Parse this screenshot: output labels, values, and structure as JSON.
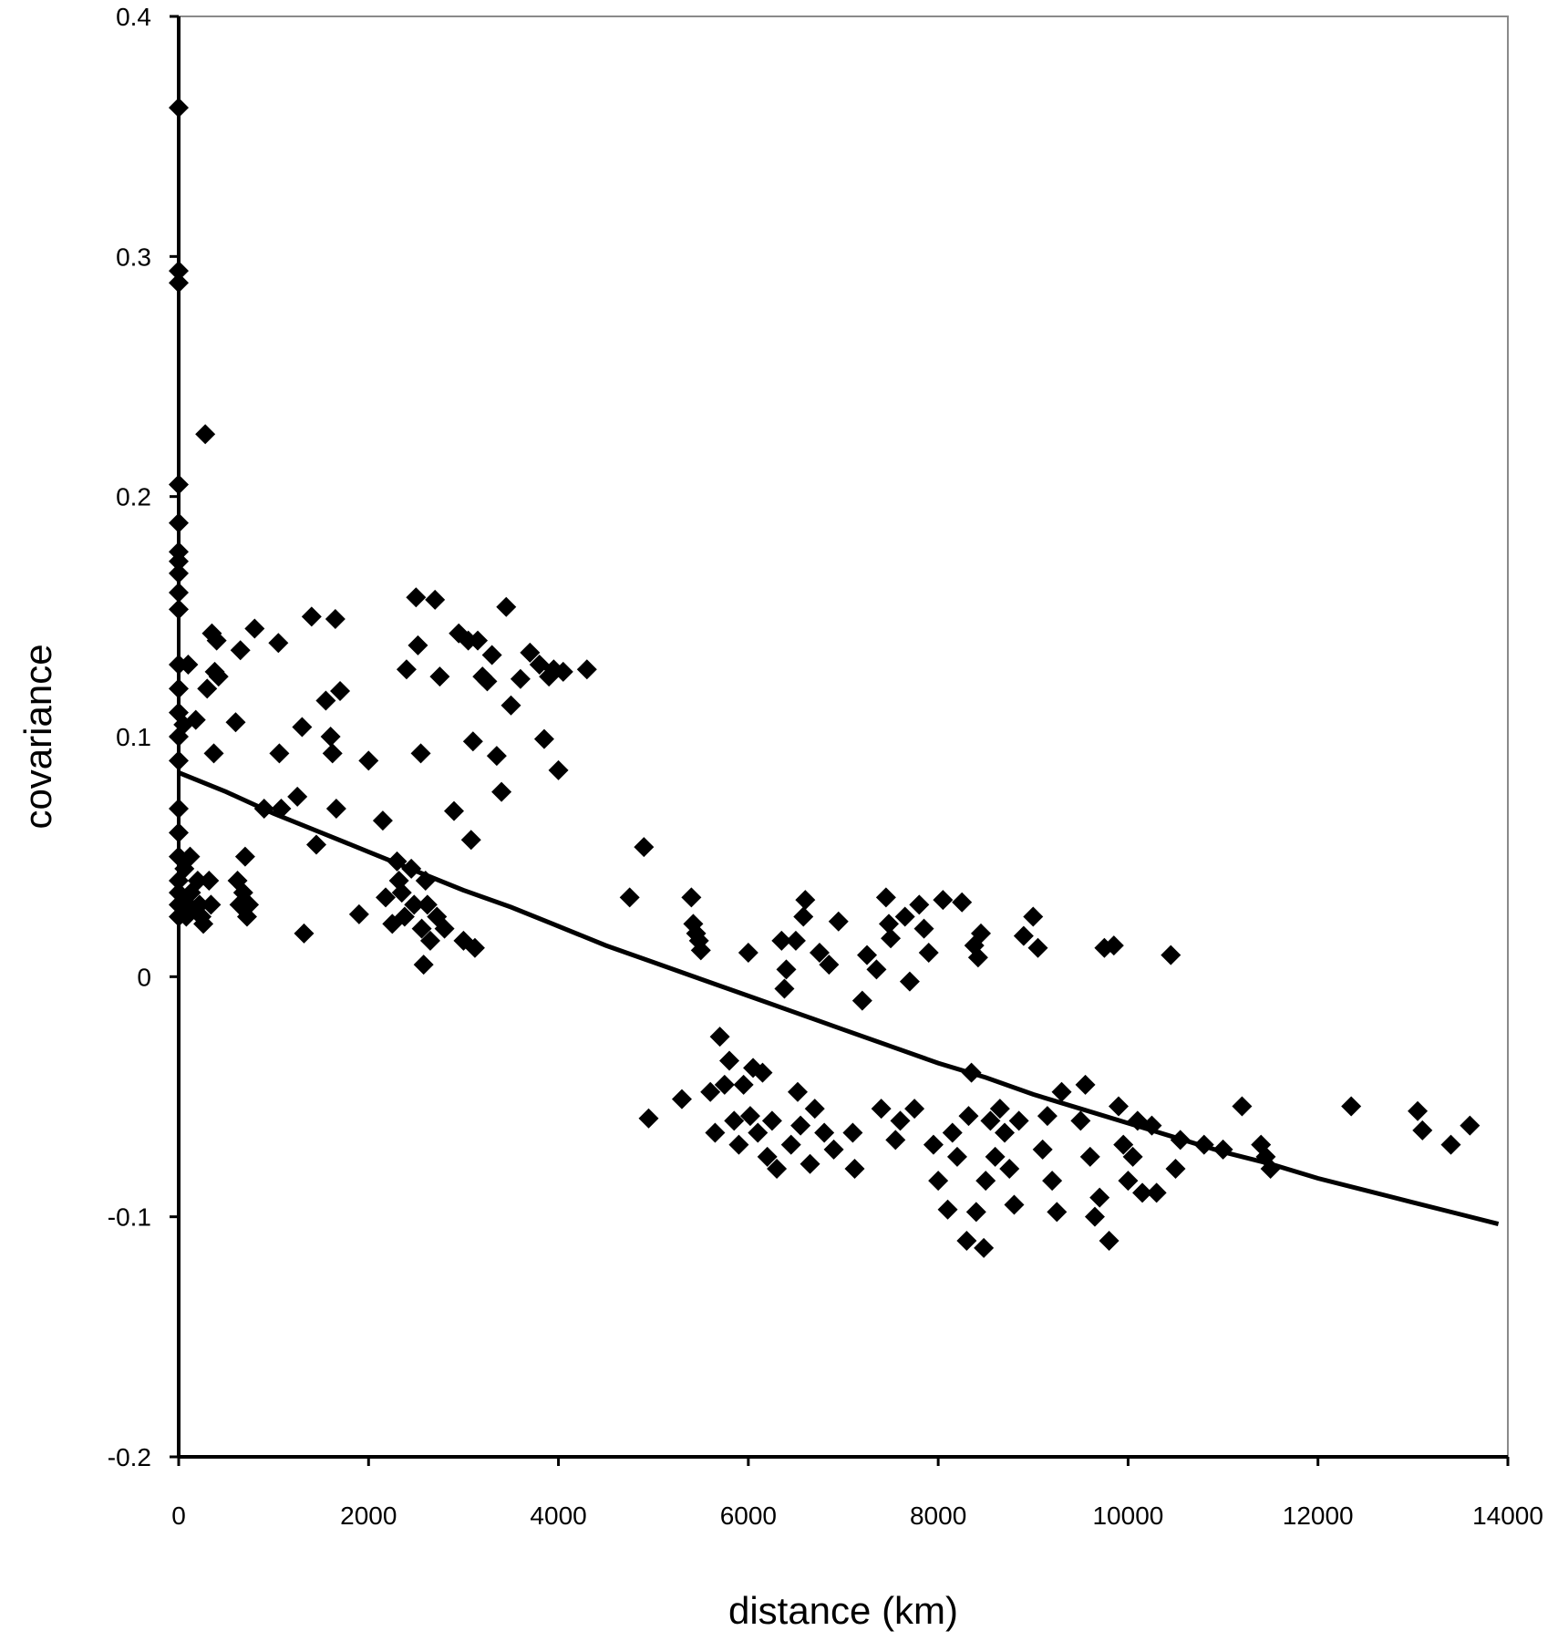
{
  "chart_data": {
    "type": "scatter",
    "xlabel": "distance (km)",
    "ylabel": "covariance",
    "xlim": [
      0,
      14000
    ],
    "ylim": [
      -0.2,
      0.4
    ],
    "x_ticks": [
      0,
      2000,
      4000,
      6000,
      8000,
      10000,
      12000,
      14000
    ],
    "y_ticks": [
      -0.2,
      -0.1,
      0,
      0.1,
      0.2,
      0.3,
      0.4
    ],
    "y_tick_labels": [
      "-0.2",
      "-0.1",
      "0",
      "0.1",
      "0.2",
      "0.3",
      "0.4"
    ],
    "x_tick_labels": [
      "0",
      "2000",
      "4000",
      "6000",
      "8000",
      "10000",
      "12000",
      "14000"
    ],
    "grid": false,
    "marker": "diamond",
    "marker_color": "#000000",
    "points": [
      [
        0,
        0.362
      ],
      [
        0,
        0.294
      ],
      [
        0,
        0.289
      ],
      [
        0,
        0.205
      ],
      [
        0,
        0.189
      ],
      [
        0,
        0.177
      ],
      [
        0,
        0.173
      ],
      [
        0,
        0.168
      ],
      [
        0,
        0.16
      ],
      [
        0,
        0.153
      ],
      [
        0,
        0.13
      ],
      [
        0,
        0.12
      ],
      [
        0,
        0.11
      ],
      [
        0,
        0.1
      ],
      [
        0,
        0.09
      ],
      [
        0,
        0.07
      ],
      [
        0,
        0.06
      ],
      [
        0,
        0.05
      ],
      [
        0,
        0.04
      ],
      [
        0,
        0.035
      ],
      [
        0,
        0.03
      ],
      [
        0,
        0.025
      ],
      [
        50,
        0.105
      ],
      [
        60,
        0.045
      ],
      [
        70,
        0.03
      ],
      [
        80,
        0.025
      ],
      [
        100,
        0.13
      ],
      [
        120,
        0.05
      ],
      [
        130,
        0.035
      ],
      [
        150,
        0.028
      ],
      [
        180,
        0.107
      ],
      [
        200,
        0.04
      ],
      [
        220,
        0.03
      ],
      [
        240,
        0.025
      ],
      [
        260,
        0.022
      ],
      [
        280,
        0.226
      ],
      [
        300,
        0.12
      ],
      [
        320,
        0.04
      ],
      [
        340,
        0.03
      ],
      [
        350,
        0.143
      ],
      [
        370,
        0.093
      ],
      [
        380,
        0.127
      ],
      [
        400,
        0.14
      ],
      [
        420,
        0.125
      ],
      [
        600,
        0.106
      ],
      [
        620,
        0.04
      ],
      [
        640,
        0.03
      ],
      [
        650,
        0.136
      ],
      [
        680,
        0.035
      ],
      [
        700,
        0.05
      ],
      [
        720,
        0.025
      ],
      [
        740,
        0.03
      ],
      [
        800,
        0.145
      ],
      [
        900,
        0.07
      ],
      [
        1050,
        0.139
      ],
      [
        1060,
        0.093
      ],
      [
        1080,
        0.07
      ],
      [
        1250,
        0.075
      ],
      [
        1300,
        0.104
      ],
      [
        1320,
        0.018
      ],
      [
        1400,
        0.15
      ],
      [
        1450,
        0.055
      ],
      [
        1550,
        0.115
      ],
      [
        1600,
        0.1
      ],
      [
        1620,
        0.093
      ],
      [
        1650,
        0.149
      ],
      [
        1660,
        0.07
      ],
      [
        1700,
        0.119
      ],
      [
        1900,
        0.026
      ],
      [
        2000,
        0.09
      ],
      [
        2150,
        0.065
      ],
      [
        2180,
        0.033
      ],
      [
        2250,
        0.022
      ],
      [
        2300,
        0.048
      ],
      [
        2320,
        0.04
      ],
      [
        2350,
        0.035
      ],
      [
        2380,
        0.025
      ],
      [
        2400,
        0.128
      ],
      [
        2450,
        0.045
      ],
      [
        2480,
        0.03
      ],
      [
        2500,
        0.158
      ],
      [
        2520,
        0.138
      ],
      [
        2550,
        0.093
      ],
      [
        2560,
        0.02
      ],
      [
        2580,
        0.005
      ],
      [
        2600,
        0.04
      ],
      [
        2620,
        0.03
      ],
      [
        2650,
        0.015
      ],
      [
        2700,
        0.157
      ],
      [
        2720,
        0.025
      ],
      [
        2750,
        0.125
      ],
      [
        2800,
        0.02
      ],
      [
        2900,
        0.069
      ],
      [
        2950,
        0.143
      ],
      [
        3000,
        0.015
      ],
      [
        3050,
        0.14
      ],
      [
        3080,
        0.057
      ],
      [
        3100,
        0.098
      ],
      [
        3120,
        0.012
      ],
      [
        3150,
        0.14
      ],
      [
        3200,
        0.125
      ],
      [
        3250,
        0.123
      ],
      [
        3300,
        0.134
      ],
      [
        3350,
        0.092
      ],
      [
        3400,
        0.077
      ],
      [
        3450,
        0.154
      ],
      [
        3500,
        0.113
      ],
      [
        3600,
        0.124
      ],
      [
        3700,
        0.135
      ],
      [
        3800,
        0.13
      ],
      [
        3850,
        0.099
      ],
      [
        3900,
        0.125
      ],
      [
        3950,
        0.128
      ],
      [
        4000,
        0.086
      ],
      [
        4050,
        0.127
      ],
      [
        4300,
        0.128
      ],
      [
        4750,
        0.033
      ],
      [
        4900,
        0.054
      ],
      [
        4950,
        -0.059
      ],
      [
        5300,
        -0.051
      ],
      [
        5400,
        0.033
      ],
      [
        5420,
        0.022
      ],
      [
        5450,
        0.018
      ],
      [
        5480,
        0.015
      ],
      [
        5500,
        0.011
      ],
      [
        5600,
        -0.048
      ],
      [
        5650,
        -0.065
      ],
      [
        5700,
        -0.025
      ],
      [
        5750,
        -0.045
      ],
      [
        5800,
        -0.035
      ],
      [
        5850,
        -0.06
      ],
      [
        5900,
        -0.07
      ],
      [
        5950,
        -0.045
      ],
      [
        6000,
        0.01
      ],
      [
        6020,
        -0.058
      ],
      [
        6050,
        -0.038
      ],
      [
        6100,
        -0.065
      ],
      [
        6150,
        -0.04
      ],
      [
        6200,
        -0.075
      ],
      [
        6250,
        -0.06
      ],
      [
        6300,
        -0.08
      ],
      [
        6350,
        0.015
      ],
      [
        6380,
        -0.005
      ],
      [
        6400,
        0.003
      ],
      [
        6450,
        -0.07
      ],
      [
        6500,
        0.015
      ],
      [
        6520,
        -0.048
      ],
      [
        6550,
        -0.062
      ],
      [
        6580,
        0.025
      ],
      [
        6600,
        0.032
      ],
      [
        6650,
        -0.078
      ],
      [
        6700,
        -0.055
      ],
      [
        6750,
        0.01
      ],
      [
        6800,
        -0.065
      ],
      [
        6850,
        0.005
      ],
      [
        6900,
        -0.072
      ],
      [
        6950,
        0.023
      ],
      [
        7100,
        -0.065
      ],
      [
        7120,
        -0.08
      ],
      [
        7200,
        -0.01
      ],
      [
        7250,
        0.009
      ],
      [
        7350,
        0.003
      ],
      [
        7400,
        -0.055
      ],
      [
        7450,
        0.033
      ],
      [
        7480,
        0.022
      ],
      [
        7500,
        0.016
      ],
      [
        7550,
        -0.068
      ],
      [
        7600,
        -0.06
      ],
      [
        7650,
        0.025
      ],
      [
        7700,
        -0.002
      ],
      [
        7750,
        -0.055
      ],
      [
        7800,
        0.03
      ],
      [
        7850,
        0.02
      ],
      [
        7900,
        0.01
      ],
      [
        7950,
        -0.07
      ],
      [
        8000,
        -0.085
      ],
      [
        8050,
        0.032
      ],
      [
        8100,
        -0.097
      ],
      [
        8150,
        -0.065
      ],
      [
        8200,
        -0.075
      ],
      [
        8250,
        0.031
      ],
      [
        8300,
        -0.11
      ],
      [
        8320,
        -0.058
      ],
      [
        8350,
        -0.04
      ],
      [
        8380,
        0.013
      ],
      [
        8400,
        -0.098
      ],
      [
        8420,
        0.008
      ],
      [
        8450,
        0.018
      ],
      [
        8480,
        -0.113
      ],
      [
        8500,
        -0.085
      ],
      [
        8550,
        -0.06
      ],
      [
        8600,
        -0.075
      ],
      [
        8650,
        -0.055
      ],
      [
        8700,
        -0.065
      ],
      [
        8750,
        -0.08
      ],
      [
        8800,
        -0.095
      ],
      [
        8850,
        -0.06
      ],
      [
        8900,
        0.017
      ],
      [
        9000,
        0.025
      ],
      [
        9050,
        0.012
      ],
      [
        9100,
        -0.072
      ],
      [
        9150,
        -0.058
      ],
      [
        9200,
        -0.085
      ],
      [
        9250,
        -0.098
      ],
      [
        9300,
        -0.048
      ],
      [
        9500,
        -0.06
      ],
      [
        9550,
        -0.045
      ],
      [
        9600,
        -0.075
      ],
      [
        9650,
        -0.1
      ],
      [
        9700,
        -0.092
      ],
      [
        9750,
        0.012
      ],
      [
        9800,
        -0.11
      ],
      [
        9850,
        0.013
      ],
      [
        9900,
        -0.054
      ],
      [
        9950,
        -0.07
      ],
      [
        10000,
        -0.085
      ],
      [
        10050,
        -0.075
      ],
      [
        10100,
        -0.06
      ],
      [
        10150,
        -0.09
      ],
      [
        10250,
        -0.062
      ],
      [
        10300,
        -0.09
      ],
      [
        10450,
        0.009
      ],
      [
        10500,
        -0.08
      ],
      [
        10550,
        -0.068
      ],
      [
        10800,
        -0.07
      ],
      [
        11000,
        -0.072
      ],
      [
        11200,
        -0.054
      ],
      [
        11400,
        -0.07
      ],
      [
        11450,
        -0.075
      ],
      [
        11500,
        -0.08
      ],
      [
        12350,
        -0.054
      ],
      [
        13050,
        -0.056
      ],
      [
        13100,
        -0.064
      ],
      [
        13400,
        -0.07
      ],
      [
        13600,
        -0.062
      ]
    ],
    "trendline": {
      "type": "curve",
      "points": [
        [
          0,
          0.085
        ],
        [
          500,
          0.077
        ],
        [
          1000,
          0.068
        ],
        [
          1500,
          0.06
        ],
        [
          2000,
          0.052
        ],
        [
          2500,
          0.044
        ],
        [
          3000,
          0.036
        ],
        [
          3500,
          0.029
        ],
        [
          4000,
          0.021
        ],
        [
          4500,
          0.013
        ],
        [
          5000,
          0.006
        ],
        [
          5500,
          -0.001
        ],
        [
          6000,
          -0.008
        ],
        [
          6500,
          -0.015
        ],
        [
          7000,
          -0.022
        ],
        [
          7500,
          -0.029
        ],
        [
          8000,
          -0.036
        ],
        [
          8500,
          -0.042
        ],
        [
          9000,
          -0.049
        ],
        [
          9500,
          -0.055
        ],
        [
          10000,
          -0.061
        ],
        [
          10500,
          -0.067
        ],
        [
          11000,
          -0.073
        ],
        [
          11500,
          -0.078
        ],
        [
          12000,
          -0.084
        ],
        [
          12500,
          -0.089
        ],
        [
          13000,
          -0.094
        ],
        [
          13500,
          -0.099
        ],
        [
          13900,
          -0.103
        ]
      ]
    }
  }
}
